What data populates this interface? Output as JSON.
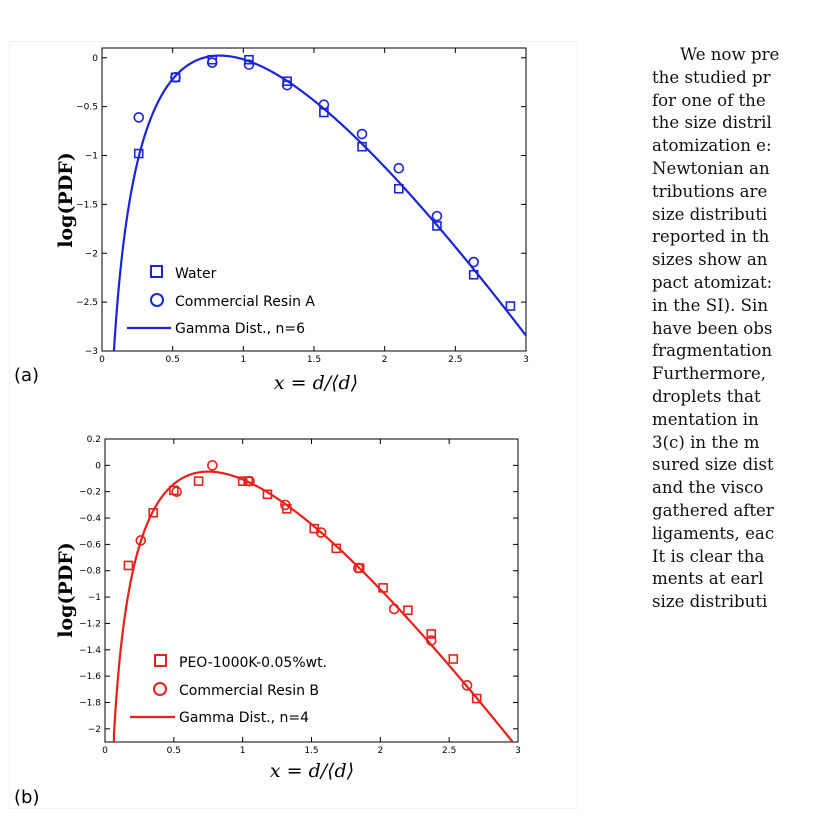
{
  "chart_data": [
    {
      "panel_label": "(a)",
      "type": "scatter",
      "xlabel": "x = d/⟨d⟩",
      "ylabel": "log(PDF)",
      "xlim": [
        0,
        3
      ],
      "ylim": [
        -3,
        0.1
      ],
      "xticks": [
        "0",
        "0.5",
        "1",
        "1.5",
        "2",
        "2.5",
        "3"
      ],
      "yticks": [
        "0",
        "−0.5",
        "−1",
        "−1.5",
        "−2",
        "−2.5",
        "−3"
      ],
      "color": "#1a25d6",
      "series": [
        {
          "name": "Water",
          "marker": "square",
          "x": [
            0.26,
            0.52,
            0.78,
            1.04,
            1.31,
            1.57,
            1.84,
            2.1,
            2.37,
            2.63,
            2.89
          ],
          "y": [
            -0.98,
            -0.2,
            -0.02,
            -0.02,
            -0.24,
            -0.56,
            -0.91,
            -1.34,
            -1.72,
            -2.22,
            -2.54
          ]
        },
        {
          "name": "Commercial Resin A",
          "marker": "circle",
          "x": [
            0.26,
            0.52,
            0.78,
            1.04,
            1.31,
            1.57,
            1.84,
            2.1,
            2.37,
            2.63
          ],
          "y": [
            -0.61,
            -0.2,
            -0.05,
            -0.07,
            -0.28,
            -0.48,
            -0.78,
            -1.13,
            -1.62,
            -2.09
          ]
        },
        {
          "name": "Gamma Dist., n=6",
          "marker": "line",
          "n": 6
        }
      ],
      "legend": [
        "Water",
        "Commercial Resin A",
        "Gamma Dist., n=6"
      ]
    },
    {
      "panel_label": "(b)",
      "type": "scatter",
      "xlabel": "x = d/⟨d⟩",
      "ylabel": "log(PDF)",
      "xlim": [
        0,
        3
      ],
      "ylim": [
        -2.1,
        0.2
      ],
      "xticks": [
        "0",
        "0.5",
        "1",
        "1.5",
        "2",
        "2.5",
        "3"
      ],
      "yticks": [
        "0.2",
        "0",
        "−0.2",
        "−0.4",
        "−0.6",
        "−0.8",
        "−1",
        "−1.2",
        "−1.4",
        "−1.6",
        "−1.8",
        "−2"
      ],
      "color": "#e8201a",
      "series": [
        {
          "name": "PEO-1000K-0.05%wt.",
          "marker": "square",
          "x": [
            0.17,
            0.35,
            0.5,
            0.68,
            1.0,
            1.04,
            1.18,
            1.32,
            1.52,
            1.68,
            1.85,
            2.02,
            2.2,
            2.37,
            2.53,
            2.7
          ],
          "y": [
            -0.76,
            -0.36,
            -0.19,
            -0.12,
            -0.12,
            -0.12,
            -0.22,
            -0.33,
            -0.48,
            -0.63,
            -0.78,
            -0.93,
            -1.1,
            -1.28,
            -1.47,
            -1.77
          ]
        },
        {
          "name": "Commercial Resin B",
          "marker": "circle",
          "x": [
            0.26,
            0.52,
            0.78,
            1.05,
            1.31,
            1.57,
            1.84,
            2.1,
            2.37,
            2.63
          ],
          "y": [
            -0.57,
            -0.2,
            0.0,
            -0.12,
            -0.3,
            -0.51,
            -0.78,
            -1.09,
            -1.33,
            -1.67
          ]
        },
        {
          "name": "Gamma Dist., n=4",
          "marker": "line",
          "n": 4
        }
      ],
      "legend": [
        "PEO-1000K-0.05%wt.",
        "Commercial Resin B",
        "Gamma Dist., n=4"
      ]
    }
  ],
  "body_text": [
    "We now pre",
    "the studied pr",
    "for one of the",
    "the size distril",
    "atomization e:",
    "Newtonian an",
    "tributions are",
    "size distributi",
    "reported in th",
    "sizes show an",
    "pact atomizat:",
    "in the SI). Sin",
    "have been obs",
    "fragmentation",
    "Furthermore, ",
    "droplets that",
    "mentation in ",
    "3(c) in the m",
    "sured size dist",
    "and the visco",
    "gathered after",
    "ligaments, eac",
    "It is clear tha",
    "ments at earl",
    "size distributi"
  ]
}
